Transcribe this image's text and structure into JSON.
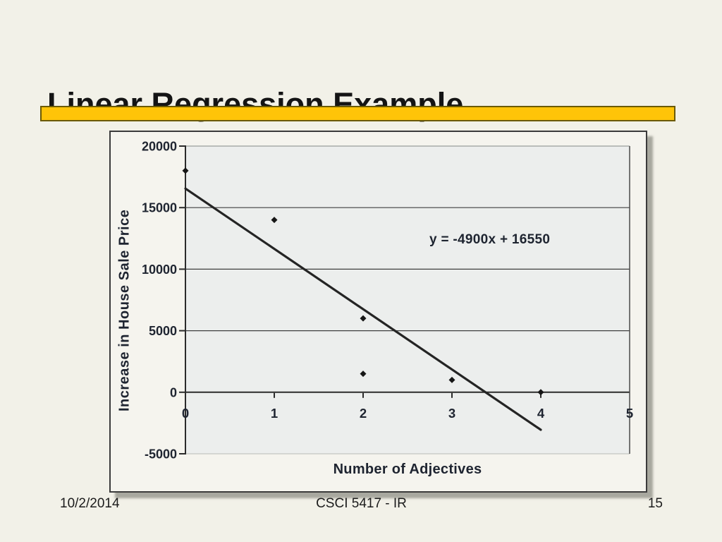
{
  "slide": {
    "title": "Linear Regression Example",
    "background_color": "#F2F1E8",
    "accent_bar": {
      "color": "#FFC408",
      "border_color": "#6B5A00"
    },
    "footer": {
      "date": "10/2/2014",
      "course": "CSCI 5417 - IR",
      "page_number": "15"
    }
  },
  "chart_data": {
    "type": "scatter",
    "xlabel": "Number of Adjectives",
    "ylabel": "Increase in House Sale Price",
    "points": [
      [
        0,
        18000
      ],
      [
        1,
        14000
      ],
      [
        2,
        6000
      ],
      [
        2,
        1500
      ],
      [
        3,
        1000
      ],
      [
        4,
        0
      ]
    ],
    "trendline": {
      "label": "y = -4900x + 16550",
      "slope": -4900,
      "intercept": 16550,
      "x_start": 0,
      "x_end": 4
    },
    "xlim": [
      0,
      5
    ],
    "ylim": [
      -5000,
      20000
    ],
    "xticks": [
      0,
      1,
      2,
      3,
      4,
      5
    ],
    "yticks": [
      20000,
      15000,
      10000,
      5000,
      0,
      -5000
    ],
    "grid": "horizontal-only",
    "legend": "none",
    "marker": "diamond",
    "colors": {
      "plot_bg": "#ECEEED",
      "axis_text": "#1E2430",
      "gridline": "#3F3F3F",
      "axis_line": "#2B2B2B",
      "top_edge": "#A8ACA9",
      "bottom_edge": "#B9BCB6",
      "right_edge": "#4A4A4A",
      "line": "#242424",
      "marker": "#161616"
    }
  }
}
